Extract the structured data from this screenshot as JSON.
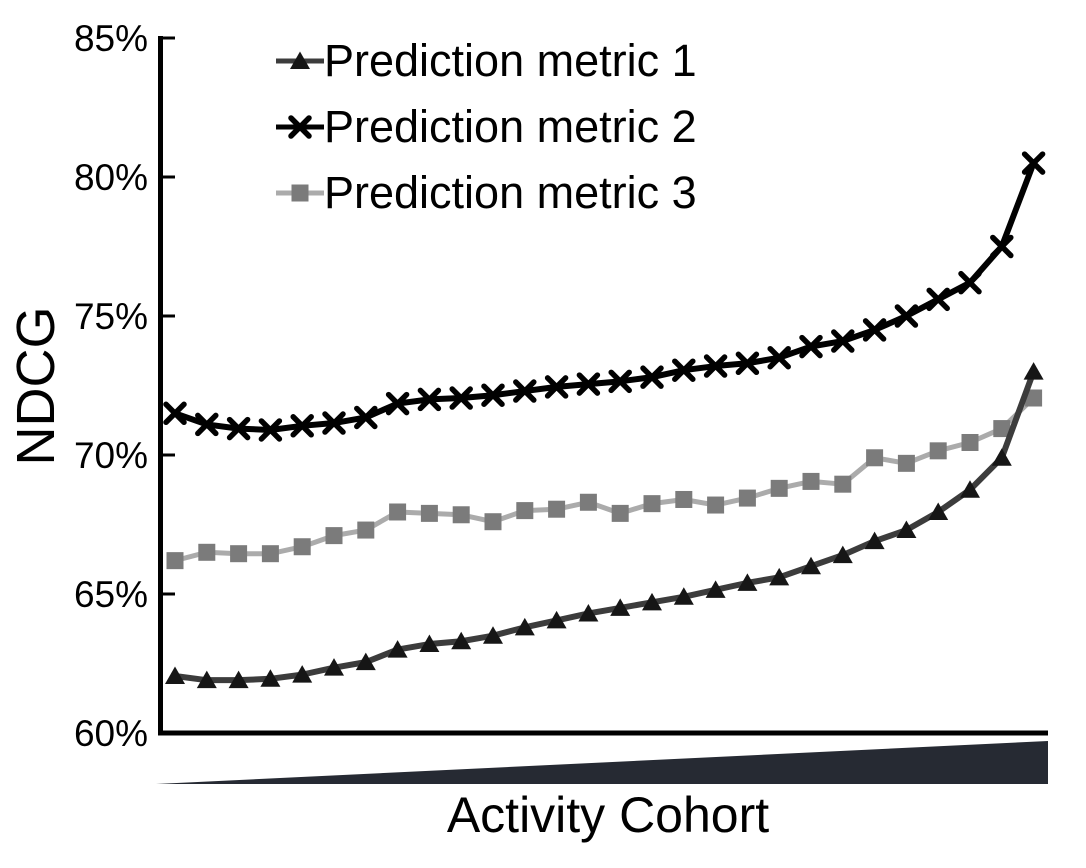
{
  "chart_data": {
    "type": "line",
    "title": "",
    "ylabel": "NDCG",
    "xlabel": "Activity Cohort",
    "grid": false,
    "legend_position": "top-left-inside",
    "ylim": [
      60,
      85
    ],
    "y_ticks": [
      "60%",
      "65%",
      "70%",
      "75%",
      "80%",
      "85%"
    ],
    "y_tick_values": [
      60,
      65,
      70,
      75,
      80,
      85
    ],
    "x_axis_annotation": "increasing-activity-wedge",
    "wedge_color": "#262a33",
    "axis_color": "#000000",
    "x": [
      1,
      2,
      3,
      4,
      5,
      6,
      7,
      8,
      9,
      10,
      11,
      12,
      13,
      14,
      15,
      16,
      17,
      18,
      19,
      20,
      21,
      22,
      23,
      24,
      25,
      26,
      27,
      28
    ],
    "series": [
      {
        "name": "Prediction metric 1",
        "marker": "triangle",
        "line_color": "#3c3c3c",
        "marker_color": "#161616",
        "line_width": 6,
        "values": [
          62.05,
          61.9,
          61.9,
          61.95,
          62.1,
          62.35,
          62.55,
          63.0,
          63.2,
          63.3,
          63.5,
          63.8,
          64.05,
          64.3,
          64.5,
          64.7,
          64.9,
          65.15,
          65.4,
          65.6,
          66.0,
          66.4,
          66.9,
          67.3,
          67.95,
          68.75,
          69.9,
          73.0
        ]
      },
      {
        "name": "Prediction metric 2",
        "marker": "x",
        "line_color": "#010101",
        "marker_color": "#010101",
        "line_width": 6,
        "values": [
          71.5,
          71.1,
          70.95,
          70.9,
          71.05,
          71.15,
          71.35,
          71.85,
          72.0,
          72.05,
          72.15,
          72.3,
          72.45,
          72.55,
          72.65,
          72.8,
          73.05,
          73.2,
          73.3,
          73.5,
          73.9,
          74.1,
          74.5,
          75.0,
          75.6,
          76.2,
          77.5,
          80.5
        ]
      },
      {
        "name": "Prediction metric 3",
        "marker": "square",
        "line_color": "#ababab",
        "marker_color": "#7b7b7b",
        "line_width": 5,
        "values": [
          66.2,
          66.5,
          66.45,
          66.45,
          66.7,
          67.1,
          67.3,
          67.95,
          67.9,
          67.85,
          67.6,
          68.0,
          68.05,
          68.3,
          67.9,
          68.25,
          68.4,
          68.2,
          68.45,
          68.8,
          69.05,
          68.95,
          69.9,
          69.7,
          70.15,
          70.45,
          70.95,
          72.05
        ]
      }
    ]
  }
}
